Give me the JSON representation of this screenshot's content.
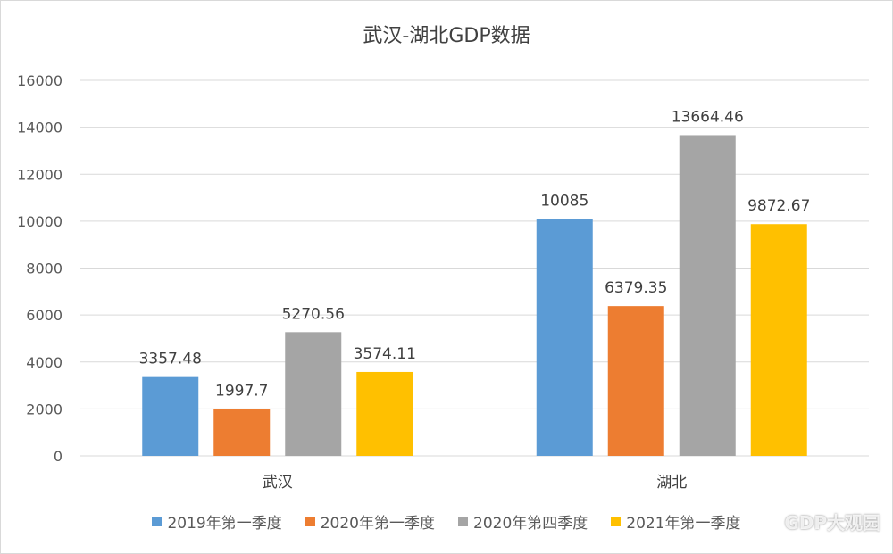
{
  "chart_data": {
    "type": "bar",
    "title": "武汉-湖北GDP数据",
    "categories": [
      "武汉",
      "湖北"
    ],
    "series": [
      {
        "name": "2019年第一季度",
        "color": "#5b9bd5",
        "values": [
          3357.48,
          10085
        ],
        "labels": [
          "3357.48",
          "10085"
        ]
      },
      {
        "name": "2020年第一季度",
        "color": "#ed7d31",
        "values": [
          1997.7,
          6379.35
        ],
        "labels": [
          "1997.7",
          "6379.35"
        ]
      },
      {
        "name": "2020年第四季度",
        "color": "#a5a5a5",
        "values": [
          5270.56,
          13664.46
        ],
        "labels": [
          "5270.56",
          "13664.46"
        ]
      },
      {
        "name": "2021年第一季度",
        "color": "#ffc000",
        "values": [
          3574.11,
          9872.67
        ],
        "labels": [
          "3574.11",
          "9872.67"
        ]
      }
    ],
    "ylim": [
      0,
      16000
    ],
    "yticks": [
      0,
      2000,
      4000,
      6000,
      8000,
      10000,
      12000,
      14000,
      16000
    ],
    "grid": true,
    "legend_position": "bottom"
  },
  "watermark": "GDP大观园"
}
